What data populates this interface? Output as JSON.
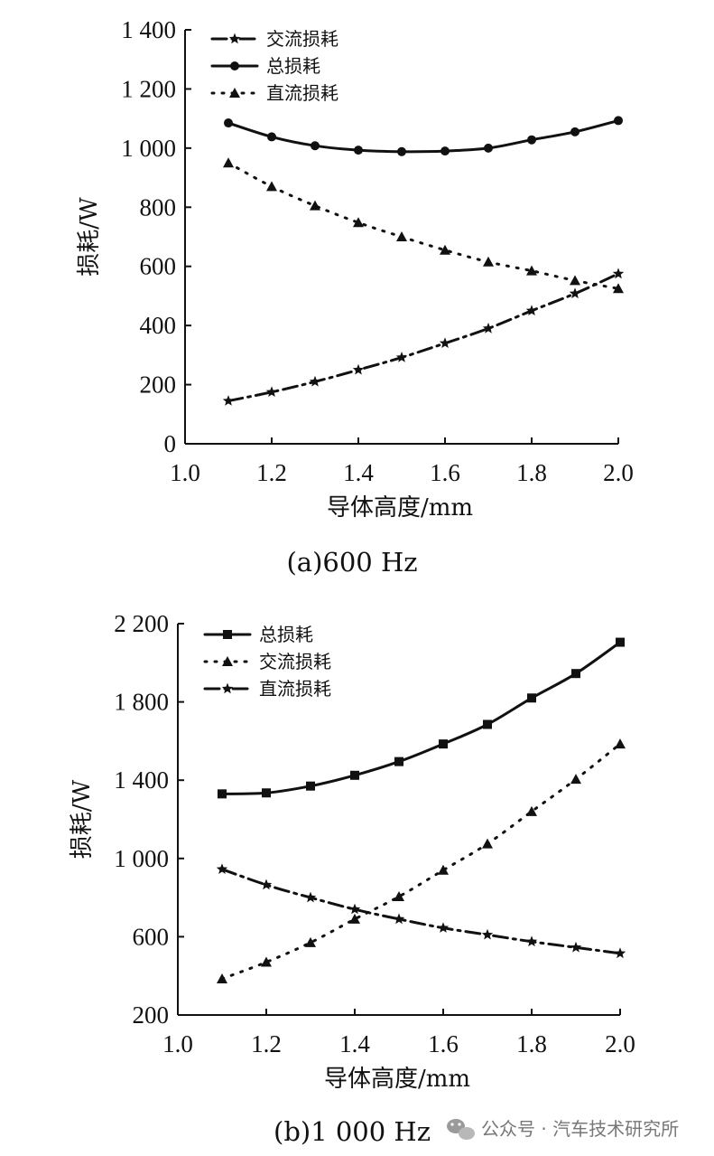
{
  "chart_data": [
    {
      "type": "line",
      "caption": "(a)600 Hz",
      "xlabel": "导体高度/mm",
      "ylabel": "损耗/W",
      "xlim": [
        1.0,
        2.0
      ],
      "ylim": [
        0,
        1400
      ],
      "xticks": [
        1.0,
        1.2,
        1.4,
        1.6,
        1.8,
        2.0
      ],
      "xtick_labels": [
        "1.0",
        "1.2",
        "1.4",
        "1.6",
        "1.8",
        "2.0"
      ],
      "yticks": [
        0,
        200,
        400,
        600,
        800,
        1000,
        1200,
        1400
      ],
      "ytick_labels": [
        "0",
        "200",
        "400",
        "600",
        "800",
        "1 000",
        "1 200",
        "1 400"
      ],
      "grid": false,
      "legend_position": "top-left",
      "x": [
        1.1,
        1.2,
        1.3,
        1.4,
        1.5,
        1.6,
        1.7,
        1.8,
        1.9,
        2.0
      ],
      "series": [
        {
          "name": "交流损耗",
          "marker": "star",
          "line": "dashdot",
          "values": [
            145,
            175,
            210,
            250,
            292,
            340,
            390,
            450,
            508,
            575
          ]
        },
        {
          "name": "总损耗",
          "marker": "circle",
          "line": "solid",
          "values": [
            1085,
            1038,
            1008,
            993,
            988,
            990,
            1000,
            1028,
            1055,
            1093
          ]
        },
        {
          "name": "直流损耗",
          "marker": "triangle",
          "line": "dotted",
          "values": [
            950,
            870,
            805,
            748,
            700,
            655,
            615,
            585,
            552,
            525
          ]
        }
      ]
    },
    {
      "type": "line",
      "caption": "(b)1 000 Hz",
      "xlabel": "导体高度/mm",
      "ylabel": "损耗/W",
      "xlim": [
        1.0,
        2.0
      ],
      "ylim": [
        200,
        2200
      ],
      "xticks": [
        1.0,
        1.2,
        1.4,
        1.6,
        1.8,
        2.0
      ],
      "xtick_labels": [
        "1.0",
        "1.2",
        "1.4",
        "1.6",
        "1.8",
        "2.0"
      ],
      "yticks": [
        200,
        600,
        1000,
        1400,
        1800,
        2200
      ],
      "ytick_labels": [
        "200",
        "600",
        "1 000",
        "1 400",
        "1 800",
        "2 200"
      ],
      "grid": false,
      "legend_position": "top-left",
      "x": [
        1.1,
        1.2,
        1.3,
        1.4,
        1.5,
        1.6,
        1.7,
        1.8,
        1.9,
        2.0
      ],
      "series": [
        {
          "name": "总损耗",
          "marker": "square",
          "line": "solid",
          "values": [
            1330,
            1335,
            1370,
            1425,
            1495,
            1585,
            1685,
            1820,
            1945,
            2105
          ]
        },
        {
          "name": "交流损耗",
          "marker": "triangle",
          "line": "dotted",
          "values": [
            385,
            470,
            570,
            690,
            805,
            940,
            1075,
            1240,
            1405,
            1585
          ]
        },
        {
          "name": "直流损耗",
          "marker": "star",
          "line": "dashdot",
          "values": [
            945,
            865,
            800,
            740,
            690,
            645,
            610,
            575,
            545,
            515
          ]
        }
      ]
    }
  ],
  "watermark": "公众号 · 汽车技术研究所"
}
